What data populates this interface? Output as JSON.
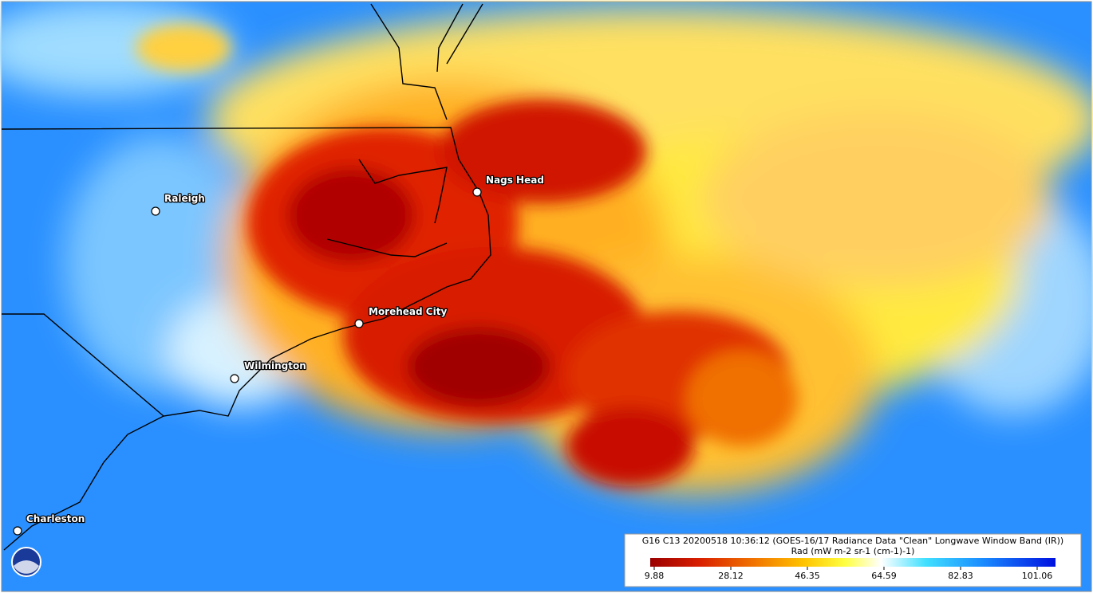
{
  "map": {
    "cities": [
      {
        "label": "Raleigh"
      },
      {
        "label": "Nags Head"
      },
      {
        "label": "Morehead City"
      },
      {
        "label": "Wilmington"
      },
      {
        "label": "Charleston"
      }
    ],
    "legend": {
      "title": "G16 C13 20200518 10:36:12 (GOES-16/17 Radiance Data \"Clean\" Longwave Window Band (IR))",
      "units": "Rad (mW m-2 sr-1 (cm-1)-1)",
      "ticks": [
        9.88,
        28.12,
        46.35,
        64.59,
        82.83,
        101.06
      ]
    }
  }
}
